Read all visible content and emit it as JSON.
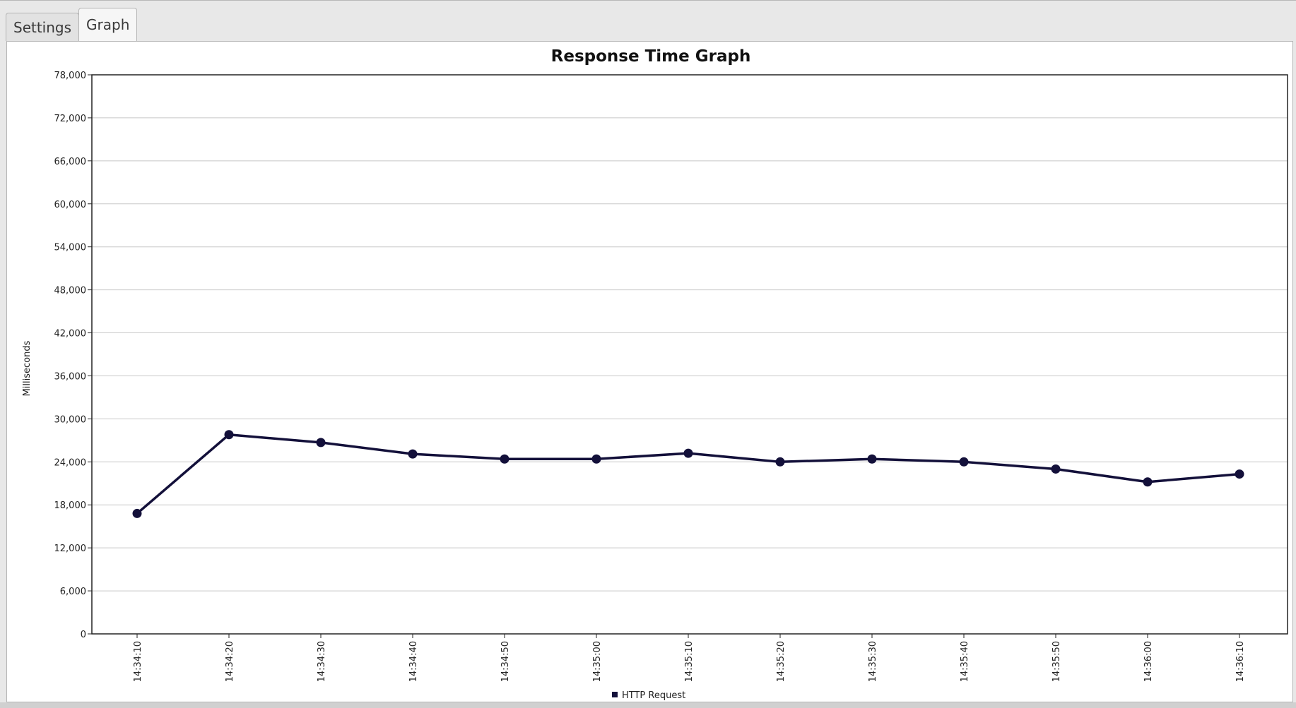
{
  "tabs": [
    {
      "label": "Settings",
      "active": false
    },
    {
      "label": "Graph",
      "active": true
    }
  ],
  "chart_data": {
    "type": "line",
    "title": "Response Time Graph",
    "xlabel": "",
    "ylabel": "Milliseconds",
    "ylim": [
      0,
      78000
    ],
    "y_ticks": [
      0,
      6000,
      12000,
      18000,
      24000,
      30000,
      36000,
      42000,
      48000,
      54000,
      60000,
      66000,
      72000,
      78000
    ],
    "y_tick_labels": [
      "0",
      "6,000",
      "12,000",
      "18,000",
      "24,000",
      "30,000",
      "36,000",
      "42,000",
      "48,000",
      "54,000",
      "60,000",
      "66,000",
      "72,000",
      "78,000"
    ],
    "categories": [
      "14:34:10",
      "14:34:20",
      "14:34:30",
      "14:34:40",
      "14:34:50",
      "14:35:00",
      "14:35:10",
      "14:35:20",
      "14:35:30",
      "14:35:40",
      "14:35:50",
      "14:36:00",
      "14:36:10"
    ],
    "series": [
      {
        "name": "HTTP Request",
        "color": "#13103a",
        "values": [
          16800,
          27800,
          26700,
          25100,
          24400,
          24400,
          25200,
          24000,
          24400,
          24000,
          23000,
          21200,
          22300
        ]
      }
    ],
    "grid": true,
    "legend": "bottom-center"
  }
}
